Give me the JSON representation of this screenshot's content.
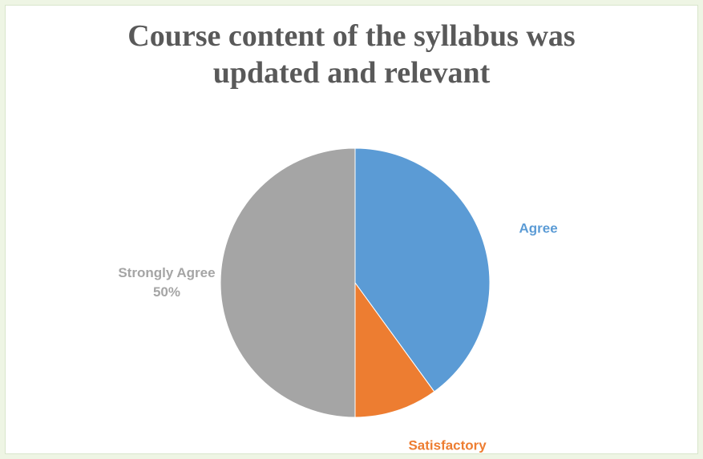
{
  "chart_data": {
    "type": "pie",
    "title": "Course content of the syllabus was updated and relevant",
    "categories": [
      "Agree",
      "Satisfactory",
      "Strongly Agree"
    ],
    "values": [
      40,
      10,
      50
    ],
    "value_labels": [
      null,
      null,
      "50%"
    ],
    "colors": [
      "#5b9bd5",
      "#ed7d31",
      "#a5a5a5"
    ],
    "start_angle": 0,
    "direction": "clockwise"
  }
}
